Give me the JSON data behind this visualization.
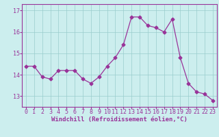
{
  "x": [
    0,
    1,
    2,
    3,
    4,
    5,
    6,
    7,
    8,
    9,
    10,
    11,
    12,
    13,
    14,
    15,
    16,
    17,
    18,
    19,
    20,
    21,
    22,
    23
  ],
  "y": [
    14.4,
    14.4,
    13.9,
    13.8,
    14.2,
    14.2,
    14.2,
    13.8,
    13.6,
    13.9,
    14.4,
    14.8,
    15.4,
    16.7,
    16.7,
    16.3,
    16.2,
    16.0,
    16.6,
    14.8,
    13.6,
    13.2,
    13.1,
    12.8
  ],
  "line_color": "#993399",
  "marker": "D",
  "marker_size": 2.5,
  "bg_color": "#cceeee",
  "grid_color": "#99cccc",
  "xlabel": "Windchill (Refroidissement éolien,°C)",
  "ylim": [
    12.5,
    17.3
  ],
  "yticks": [
    13,
    14,
    15,
    16,
    17
  ],
  "xticks": [
    0,
    1,
    2,
    3,
    4,
    5,
    6,
    7,
    8,
    9,
    10,
    11,
    12,
    13,
    14,
    15,
    16,
    17,
    18,
    19,
    20,
    21,
    22,
    23
  ],
  "tick_color": "#993399",
  "label_fontsize": 6.5,
  "tick_fontsize": 6.0
}
